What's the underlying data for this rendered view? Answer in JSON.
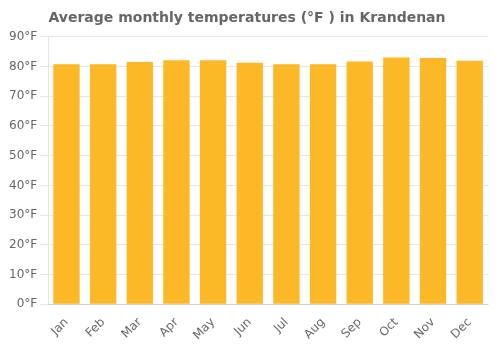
{
  "chart_data": {
    "type": "bar",
    "title": "Average monthly temperatures (°F ) in Krandenan",
    "categories": [
      "Jan",
      "Feb",
      "Mar",
      "Apr",
      "May",
      "Jun",
      "Jul",
      "Aug",
      "Sep",
      "Oct",
      "Nov",
      "Dec"
    ],
    "values": [
      80.8,
      80.8,
      81.5,
      82.1,
      82.1,
      81.3,
      80.8,
      80.8,
      81.7,
      83.0,
      82.9,
      81.9
    ],
    "color": "#FDB827",
    "ylim": [
      0,
      90
    ],
    "yticks": [
      {
        "value": 0,
        "label": "0°F"
      },
      {
        "value": 10,
        "label": "10°F"
      },
      {
        "value": 20,
        "label": "20°F"
      },
      {
        "value": 30,
        "label": "30°F"
      },
      {
        "value": 40,
        "label": "40°F"
      },
      {
        "value": 50,
        "label": "50°F"
      },
      {
        "value": 60,
        "label": "60°F"
      },
      {
        "value": 70,
        "label": "70°F"
      },
      {
        "value": 80,
        "label": "80°F"
      },
      {
        "value": 90,
        "label": "90°F"
      }
    ],
    "grid": true
  }
}
